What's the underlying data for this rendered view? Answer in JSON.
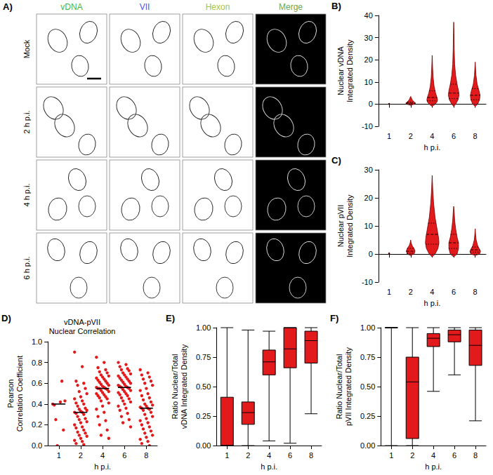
{
  "image_grid": {
    "panel": "A)",
    "columns": [
      {
        "label": "vDNA",
        "color": "#3cb93c"
      },
      {
        "label": "VII",
        "color": "#5a4fd6"
      },
      {
        "label": "Hexon",
        "color": "#a8c23a"
      },
      {
        "label": "Merge",
        "color": "#6aa84f"
      }
    ],
    "rows": [
      "Mock",
      "2 h p.i.",
      "4 h p.i.",
      "6 h p.i."
    ]
  },
  "chart_data": [
    {
      "panel": "B)",
      "type": "violin",
      "ylabel": "Nuclear vDNA\nIntegrated Density",
      "xlabel": "h p.i.",
      "categories": [
        "1",
        "2",
        "4",
        "6",
        "8"
      ],
      "color": "#e31a1c",
      "grid": false,
      "ylim": [
        -10,
        40
      ],
      "yticks": [
        -10,
        0,
        10,
        20,
        30,
        40
      ],
      "reference_line": 0,
      "violins": [
        {
          "y": [
            -0.2,
            0,
            0.2,
            0.5
          ],
          "width": [
            0,
            0.1,
            0.06,
            0
          ]
        },
        {
          "y": [
            -0.5,
            0,
            0.5,
            1,
            2,
            3,
            3.5
          ],
          "width": [
            0,
            0.4,
            0.5,
            0.35,
            0.15,
            0.05,
            0
          ]
        },
        {
          "y": [
            -1,
            0,
            1,
            2,
            3,
            5,
            8,
            12,
            16,
            22
          ],
          "width": [
            0,
            0.3,
            0.5,
            0.55,
            0.5,
            0.35,
            0.2,
            0.1,
            0.05,
            0
          ]
        },
        {
          "y": [
            -1,
            0,
            2,
            4,
            6,
            9,
            13,
            18,
            25,
            32,
            37
          ],
          "width": [
            0,
            0.2,
            0.45,
            0.55,
            0.5,
            0.35,
            0.2,
            0.1,
            0.05,
            0.03,
            0
          ]
        },
        {
          "y": [
            -1,
            0,
            2,
            4,
            6,
            9,
            13,
            19
          ],
          "width": [
            0,
            0.25,
            0.45,
            0.5,
            0.4,
            0.2,
            0.08,
            0
          ]
        }
      ],
      "quartiles": [
        [
          0,
          0.1,
          0.2
        ],
        [
          0.2,
          0.5,
          1
        ],
        [
          1.5,
          3,
          6
        ],
        [
          2.5,
          5,
          9
        ],
        [
          2,
          4,
          7
        ]
      ]
    },
    {
      "panel": "C)",
      "type": "violin",
      "ylabel": "Nuclear pVII\nIntegrated Density",
      "xlabel": "h p.i.",
      "categories": [
        "1",
        "2",
        "4",
        "6",
        "8"
      ],
      "color": "#e31a1c",
      "grid": false,
      "ylim": [
        -10,
        30
      ],
      "yticks": [
        -10,
        0,
        10,
        20,
        30
      ],
      "reference_line": 0,
      "violins": [
        {
          "y": [
            -0.2,
            0,
            0.2,
            0.6
          ],
          "width": [
            0,
            0.08,
            0.05,
            0
          ]
        },
        {
          "y": [
            -0.5,
            0,
            1,
            2,
            3,
            4,
            5
          ],
          "width": [
            0,
            0.35,
            0.45,
            0.35,
            0.15,
            0.05,
            0
          ]
        },
        {
          "y": [
            -1,
            0,
            2,
            4,
            6,
            9,
            13,
            18,
            23,
            28
          ],
          "width": [
            0,
            0.3,
            0.6,
            0.7,
            0.65,
            0.5,
            0.3,
            0.15,
            0.06,
            0
          ]
        },
        {
          "y": [
            -1,
            0,
            2,
            4,
            6,
            9,
            12,
            15,
            17
          ],
          "width": [
            0,
            0.35,
            0.5,
            0.5,
            0.35,
            0.2,
            0.1,
            0.05,
            0
          ]
        },
        {
          "y": [
            -0.5,
            0,
            1,
            2,
            3,
            5,
            7,
            9
          ],
          "width": [
            0,
            0.45,
            0.55,
            0.4,
            0.25,
            0.1,
            0.04,
            0
          ]
        }
      ],
      "quartiles": [
        [
          0,
          0.1,
          0.2
        ],
        [
          0.3,
          1,
          2
        ],
        [
          3.5,
          7,
          11
        ],
        [
          2,
          4,
          7
        ],
        [
          0.7,
          1.5,
          2.5
        ]
      ]
    },
    {
      "panel": "D)",
      "type": "scatter",
      "title": "vDNA-pVII\nNuclear Correlation",
      "ylabel": "Pearson\nCorrelation Coefficient",
      "xlabel": "h p.i.",
      "categories": [
        "1",
        "2",
        "4",
        "6",
        "8"
      ],
      "color": "#e31a1c",
      "grid": false,
      "ylim": [
        0,
        1
      ],
      "yticks": [
        {
          "value": 0,
          "label": "0.0"
        },
        0.2,
        0.4,
        0.6,
        0.8,
        {
          "value": 1,
          "label": "1.0"
        }
      ],
      "reference_line": 0,
      "values": [
        [
          0.4,
          0.42,
          0.39,
          0.62,
          0.25,
          0.15,
          0.0,
          0.43
        ],
        [
          0.9,
          0.76,
          0.62,
          0.6,
          0.58,
          0.55,
          0.52,
          0.5,
          0.47,
          0.45,
          0.43,
          0.41,
          0.4,
          0.38,
          0.36,
          0.35,
          0.34,
          0.33,
          0.32,
          0.32,
          0.31,
          0.3,
          0.28,
          0.26,
          0.25,
          0.23,
          0.22,
          0.2,
          0.18,
          0.17,
          0.15,
          0.13,
          0.12,
          0.1,
          0.09,
          0.07,
          0.05,
          0.04,
          0.02,
          0.01
        ],
        [
          0.85,
          0.8,
          0.75,
          0.73,
          0.71,
          0.7,
          0.68,
          0.67,
          0.66,
          0.65,
          0.64,
          0.63,
          0.62,
          0.61,
          0.6,
          0.59,
          0.58,
          0.57,
          0.56,
          0.56,
          0.55,
          0.55,
          0.55,
          0.54,
          0.53,
          0.52,
          0.51,
          0.5,
          0.49,
          0.48,
          0.47,
          0.46,
          0.45,
          0.43,
          0.41,
          0.38,
          0.35,
          0.32,
          0.28,
          0.24,
          0.2,
          0.15,
          0.1,
          0.07
        ],
        [
          0.8,
          0.78,
          0.76,
          0.74,
          0.73,
          0.72,
          0.7,
          0.69,
          0.68,
          0.67,
          0.66,
          0.65,
          0.64,
          0.63,
          0.62,
          0.61,
          0.6,
          0.59,
          0.58,
          0.57,
          0.57,
          0.56,
          0.56,
          0.55,
          0.54,
          0.53,
          0.52,
          0.51,
          0.5,
          0.49,
          0.48,
          0.46,
          0.45,
          0.43,
          0.42,
          0.4,
          0.38,
          0.36,
          0.34,
          0.31,
          0.28,
          0.25,
          0.22,
          0.18
        ],
        [
          0.73,
          0.7,
          0.68,
          0.66,
          0.64,
          0.62,
          0.6,
          0.58,
          0.55,
          0.53,
          0.5,
          0.48,
          0.46,
          0.44,
          0.42,
          0.4,
          0.39,
          0.38,
          0.37,
          0.36,
          0.36,
          0.35,
          0.34,
          0.32,
          0.3,
          0.28,
          0.26,
          0.24,
          0.22,
          0.2,
          0.18,
          0.16,
          0.14,
          0.12,
          0.1,
          0.08,
          0.06,
          0.04,
          0.02,
          0.0
        ]
      ],
      "medians": [
        0.4,
        0.32,
        0.55,
        0.56,
        0.36
      ]
    },
    {
      "panel": "E)",
      "type": "box",
      "ylabel": "Ratio Nuclear/Total\nvDNA Integrated Density",
      "xlabel": "h p.i.",
      "categories": [
        "1",
        "2",
        "4",
        "6",
        "8"
      ],
      "color": "#e31a1c",
      "grid": false,
      "ylim": [
        0,
        1
      ],
      "yticks": [
        {
          "value": 0,
          "label": "0.00"
        },
        0.25,
        {
          "value": 0.5,
          "label": "0.50"
        },
        0.75,
        {
          "value": 1,
          "label": "1.00"
        }
      ],
      "boxes": [
        [
          0,
          0,
          0,
          0.41,
          1.0
        ],
        [
          0,
          0.18,
          0.28,
          0.37,
          0.98
        ],
        [
          0.04,
          0.6,
          0.71,
          0.81,
          0.97
        ],
        [
          0.02,
          0.66,
          0.82,
          1.0,
          1.0
        ],
        [
          0.27,
          0.7,
          0.89,
          0.97,
          1.0
        ]
      ]
    },
    {
      "panel": "F)",
      "type": "box",
      "ylabel": "Ratio Nuclear/Total\npVII Integrated Density",
      "xlabel": "h p.i.",
      "categories": [
        "1",
        "2",
        "4",
        "6",
        "8"
      ],
      "color": "#e31a1c",
      "grid": false,
      "ylim": [
        0,
        1
      ],
      "yticks": [
        {
          "value": 0,
          "label": "0.00"
        },
        0.25,
        {
          "value": 0.5,
          "label": "0.50"
        },
        0.75,
        {
          "value": 1,
          "label": "1.00"
        }
      ],
      "boxes": [
        [
          0,
          1.0,
          1.0,
          1.0,
          1.0
        ],
        [
          0,
          0.06,
          0.54,
          0.75,
          1.0
        ],
        [
          0.46,
          0.84,
          0.91,
          0.95,
          1.0
        ],
        [
          0.6,
          0.88,
          0.94,
          0.98,
          1.0
        ],
        [
          0.21,
          0.68,
          0.85,
          0.98,
          1.0
        ]
      ]
    }
  ]
}
